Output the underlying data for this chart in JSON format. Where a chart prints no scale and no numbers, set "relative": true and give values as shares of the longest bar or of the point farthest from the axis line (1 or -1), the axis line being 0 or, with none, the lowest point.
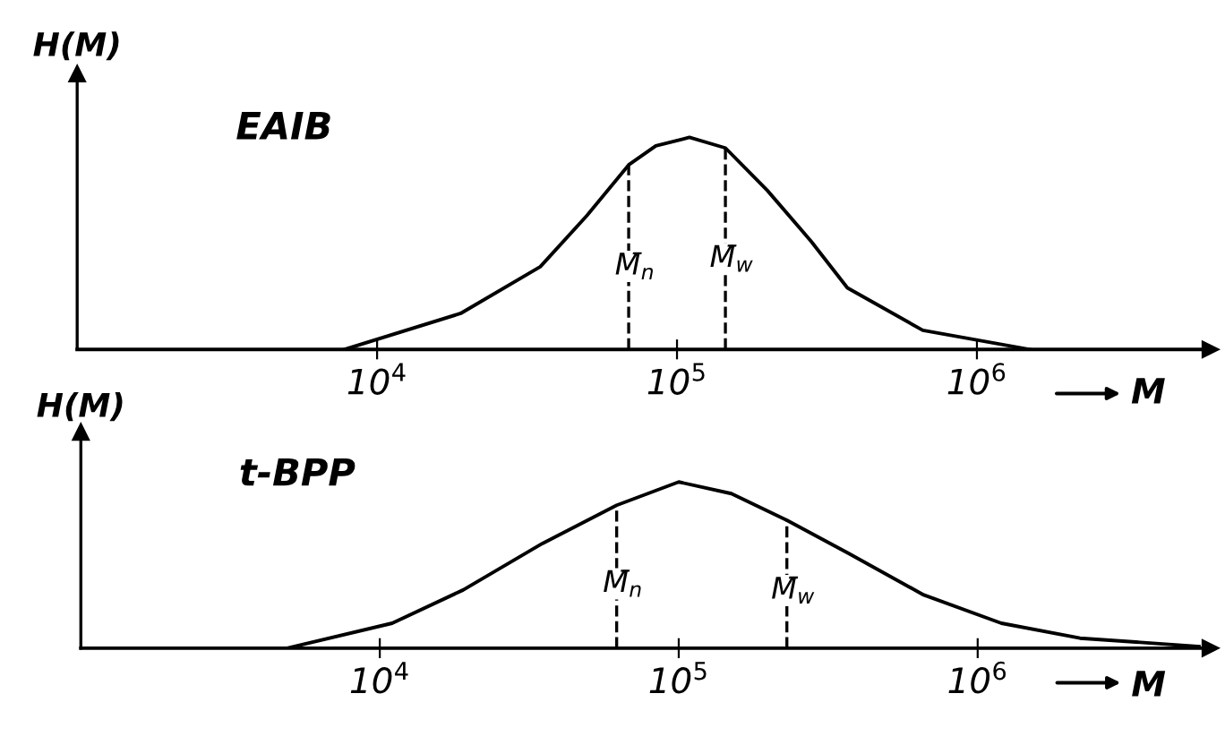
{
  "chart_data": [
    {
      "type": "line",
      "title": "EAIB",
      "ylabel": "H(M)",
      "xlabel": "M",
      "relative": true,
      "log": "x",
      "grid": false,
      "legend": false,
      "marker": "none",
      "line_style": "solid",
      "tick_labels": "x",
      "xlim": [
        1000,
        6000000
      ],
      "xticks": [
        {
          "value": 10000,
          "label": "10$^{4}$"
        },
        {
          "value": 100000,
          "label": "10$^{5}$"
        },
        {
          "value": 1000000,
          "label": "10$^{6}$"
        }
      ],
      "x": [
        7800,
        19000,
        35000,
        50000,
        69000,
        85000,
        110000,
        145000,
        200000,
        280000,
        370000,
        660000,
        1500000
      ],
      "series": [
        {
          "color": "#000000",
          "values": [
            0,
            0.17,
            0.39,
            0.63,
            0.87,
            0.96,
            1.0,
            0.95,
            0.75,
            0.51,
            0.29,
            0.09,
            0
          ]
        }
      ],
      "ref_lines": [
        {
          "axis": "x",
          "value": 69000,
          "label": "M̄$_{n}$",
          "line_style": "dashed",
          "color": "#000000"
        },
        {
          "axis": "x",
          "value": 145000,
          "label": "M̄$_{w}$",
          "line_style": "dashed",
          "color": "#000000"
        }
      ]
    },
    {
      "type": "line",
      "title": "t-BPP",
      "ylabel": "H(M)",
      "xlabel": "M",
      "relative": true,
      "log": "x",
      "grid": false,
      "legend": false,
      "marker": "none",
      "line_style": "solid",
      "tick_labels": "x",
      "xlim": [
        1000,
        6000000
      ],
      "xticks": [
        {
          "value": 10000,
          "label": "10$^{4}$"
        },
        {
          "value": 100000,
          "label": "10$^{5}$"
        },
        {
          "value": 1000000,
          "label": "10$^{6}$"
        }
      ],
      "x": [
        4900,
        11000,
        19000,
        35000,
        62000,
        100000,
        150000,
        230000,
        370000,
        660000,
        1200000,
        2200000,
        5500000
      ],
      "series": [
        {
          "color": "#000000",
          "values": [
            0,
            0.15,
            0.35,
            0.63,
            0.86,
            1.0,
            0.93,
            0.77,
            0.57,
            0.32,
            0.15,
            0.06,
            0.01
          ]
        }
      ],
      "ref_lines": [
        {
          "axis": "x",
          "value": 62000,
          "label": "M̄$_{n}$",
          "line_style": "dashed",
          "color": "#000000"
        },
        {
          "axis": "x",
          "value": 230000,
          "label": "M̄$_{w}$",
          "line_style": "dashed",
          "color": "#000000"
        }
      ]
    }
  ]
}
